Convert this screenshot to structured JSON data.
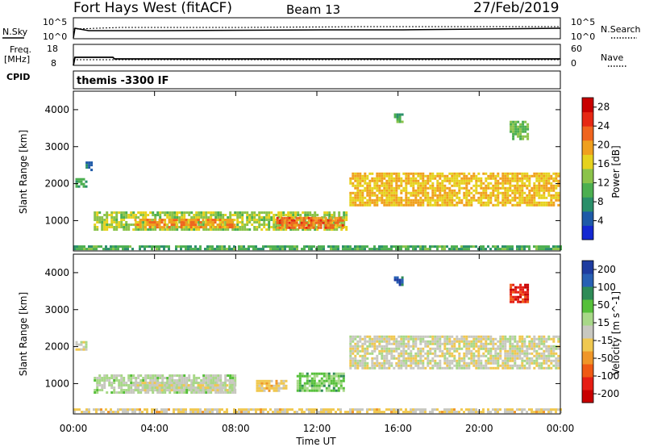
{
  "header": {
    "radar": "Fort Hays West (fitACF)",
    "beam": "Beam 13",
    "date": "27/Feb/2019"
  },
  "panels": {
    "nsky": {
      "left_label": "N.Sky",
      "right_label": "N.Search",
      "ticks": [
        "10^5",
        "10^0"
      ],
      "right_ticks": [
        "10^5",
        "10^0"
      ]
    },
    "freq": {
      "left_label_1": "Freq.",
      "left_label_2": "[MHz]",
      "ticks": [
        "18",
        "8"
      ],
      "right_label": "Nave",
      "right_ticks": [
        "60",
        "0"
      ]
    },
    "cpid": {
      "label": "CPID",
      "text": "themis -3300 IF"
    }
  },
  "colors": {
    "power_scale": [
      "#1428d2",
      "#1e5aa8",
      "#2a8f6a",
      "#4caf50",
      "#8bc34a",
      "#e6d21e",
      "#f0a01e",
      "#f0641e",
      "#e62814",
      "#c80000"
    ],
    "velocity_scale": [
      "#1e3ca0",
      "#2860b4",
      "#2e8b57",
      "#56c03a",
      "#a8d888",
      "#c8c8c0",
      "#f0c850",
      "#f09628",
      "#f05a14",
      "#e61e14",
      "#c80000"
    ]
  },
  "chart_data": [
    {
      "type": "heatmap",
      "name": "power",
      "ylabel": "Slant Range [km]",
      "yticks": [
        "1000",
        "2000",
        "3000",
        "4000"
      ],
      "ylim": [
        180,
        4500
      ],
      "xlim": [
        0,
        24
      ],
      "colorbar": {
        "label": "Power [dB]",
        "ticks": [
          "4",
          "8",
          "12",
          "16",
          "20",
          "24",
          "28"
        ],
        "range": [
          0,
          30
        ]
      },
      "echoes": [
        {
          "t0": 0.1,
          "t1": 0.6,
          "r0": 1900,
          "r1": 2150,
          "v": 9
        },
        {
          "t0": 0.6,
          "t1": 0.9,
          "r0": 2400,
          "r1": 2600,
          "v": 5
        },
        {
          "t0": 1.0,
          "t1": 13.5,
          "r0": 750,
          "r1": 1250,
          "v": 14
        },
        {
          "t0": 3.0,
          "t1": 8.0,
          "r0": 800,
          "r1": 1050,
          "v": 20
        },
        {
          "t0": 10.0,
          "t1": 13.3,
          "r0": 800,
          "r1": 1100,
          "v": 22
        },
        {
          "t0": 13.6,
          "t1": 23.9,
          "r0": 1400,
          "r1": 2300,
          "v": 18
        },
        {
          "t0": 15.8,
          "t1": 16.2,
          "r0": 3650,
          "r1": 3900,
          "v": 10
        },
        {
          "t0": 21.5,
          "t1": 22.4,
          "r0": 3200,
          "r1": 3700,
          "v": 12
        },
        {
          "t0": 0.0,
          "t1": 24.0,
          "r0": 200,
          "r1": 330,
          "v": 10
        }
      ]
    },
    {
      "type": "heatmap",
      "name": "velocity",
      "ylabel": "Slant Range [km]",
      "yticks": [
        "1000",
        "2000",
        "3000",
        "4000"
      ],
      "ylim": [
        180,
        4500
      ],
      "xlim": [
        0,
        24
      ],
      "xlabel": "Time UT",
      "xticks": [
        "00:00",
        "04:00",
        "08:00",
        "12:00",
        "16:00",
        "20:00",
        "00:00"
      ],
      "colorbar": {
        "label": "Velocity [m s^-1]",
        "ticks": [
          "200",
          "100",
          "50",
          "15",
          "-15",
          "-50",
          "-100",
          "-200"
        ],
        "range": [
          -250,
          250
        ]
      },
      "echoes": [
        {
          "t0": 0.1,
          "t1": 0.6,
          "r0": 1900,
          "r1": 2150,
          "v": 0
        },
        {
          "t0": 1.0,
          "t1": 8.0,
          "r0": 750,
          "r1": 1250,
          "v": 30
        },
        {
          "t0": 3.0,
          "t1": 8.0,
          "r0": 800,
          "r1": 1050,
          "v": 0
        },
        {
          "t0": 9.0,
          "t1": 10.5,
          "r0": 800,
          "r1": 1100,
          "v": -40
        },
        {
          "t0": 11.0,
          "t1": 13.3,
          "r0": 800,
          "r1": 1300,
          "v": 80
        },
        {
          "t0": 13.6,
          "t1": 23.9,
          "r0": 1400,
          "r1": 2300,
          "v": 0
        },
        {
          "t0": 15.8,
          "t1": 16.2,
          "r0": 3650,
          "r1": 3900,
          "v": 180
        },
        {
          "t0": 21.5,
          "t1": 22.4,
          "r0": 3200,
          "r1": 3700,
          "v": -180
        },
        {
          "t0": 0.0,
          "t1": 24.0,
          "r0": 200,
          "r1": 330,
          "v": -30
        }
      ]
    }
  ]
}
